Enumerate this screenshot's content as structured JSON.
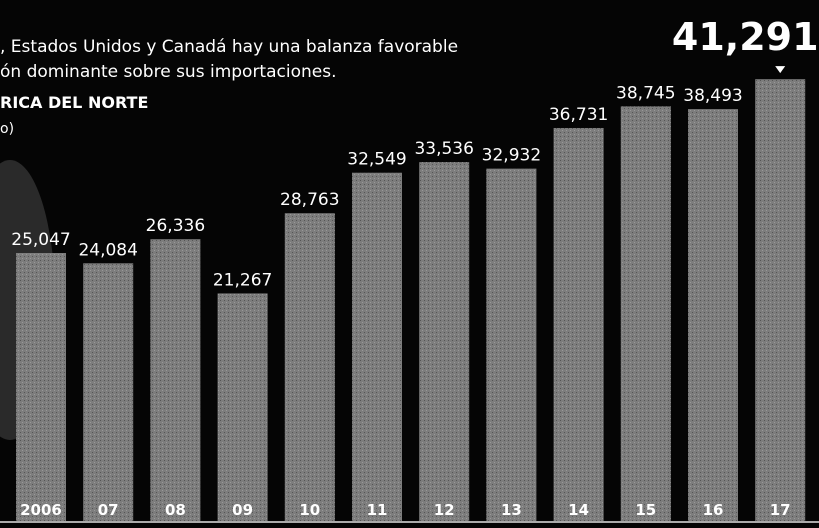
{
  "chart_data": {
    "type": "bar",
    "header_lines": [
      ", Estados Unidos y Canadá hay una balanza favorable",
      "ón dominante sobre sus importaciones.",
      "RICA DEL NORTE",
      "o)"
    ],
    "categories": [
      "2006",
      "07",
      "08",
      "09",
      "10",
      "11",
      "12",
      "13",
      "14",
      "15",
      "16",
      "17"
    ],
    "values": [
      25047,
      24084,
      26336,
      21267,
      28763,
      32549,
      33536,
      32932,
      36731,
      38745,
      38493,
      41291
    ],
    "value_labels": [
      "25,047",
      "24,084",
      "26,336",
      "21,267",
      "28,763",
      "32,549",
      "33,536",
      "32,932",
      "36,731",
      "38,745",
      "38,493",
      "41,291"
    ],
    "color": "#7d7d7d"
  }
}
